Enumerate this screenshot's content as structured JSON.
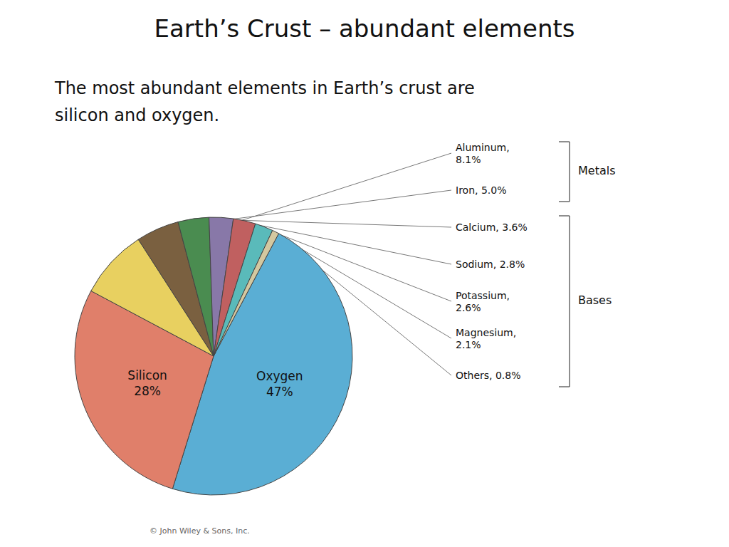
{
  "chart_data": {
    "type": "pie",
    "title": "Earth’s Crust – abundant elements",
    "subtitle": "The most abundant elements in Earth’s crust are\nsilicon and oxygen.",
    "categories": [
      "Oxygen",
      "Silicon",
      "Aluminum",
      "Iron",
      "Calcium",
      "Sodium",
      "Potassium",
      "Magnesium",
      "Others"
    ],
    "values": [
      47.0,
      28.0,
      8.1,
      5.0,
      3.6,
      2.8,
      2.6,
      2.1,
      0.8
    ],
    "value_labels": [
      "Oxygen\n47%",
      "Silicon\n28%",
      "Aluminum,\n8.1%",
      "Iron, 5.0%",
      "Calcium, 3.6%",
      "Sodium, 2.8%",
      "Potassium,\n2.6%",
      "Magnesium,\n2.1%",
      "Others, 0.8%"
    ],
    "colors": [
      "#5aaed4",
      "#e07f6a",
      "#e8d060",
      "#7a6040",
      "#4a8c50",
      "#8878a8",
      "#c06060",
      "#5ababa",
      "#d4c8a0"
    ],
    "data_labels": true,
    "annotations": [
      {
        "text": "Metals",
        "slices": [
          "Aluminum",
          "Iron"
        ]
      },
      {
        "text": "Bases",
        "slices": [
          "Calcium",
          "Sodium",
          "Potassium",
          "Magnesium",
          "Others"
        ]
      },
      {
        "text": "© John Wiley & Sons, Inc."
      }
    ]
  }
}
